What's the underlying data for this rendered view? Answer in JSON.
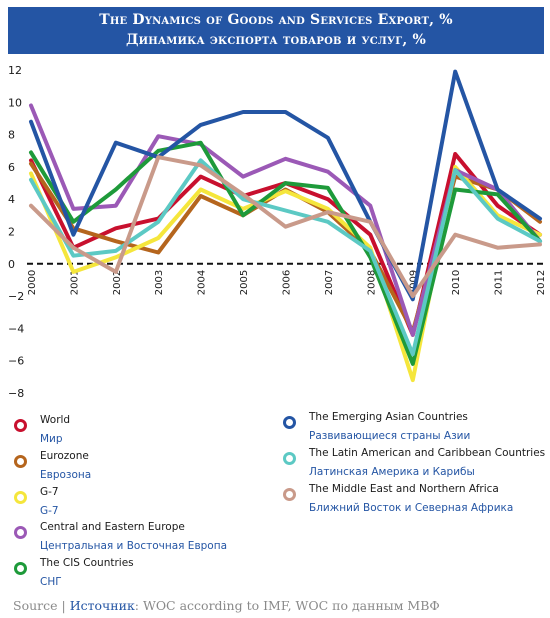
{
  "title": {
    "en": "The Dynamics of Goods and Services Export, %",
    "ru": "Динамика экспорта товаров и услуг, %"
  },
  "source": {
    "label_en": "Source",
    "separator": " | ",
    "label_ru": "Источник",
    "text": ": WOC according to IMF, WOC по данным МВФ"
  },
  "chart_data": {
    "type": "line",
    "title": "The Dynamics of Goods and Services Export, %",
    "categories": [
      "2000",
      "2001",
      "2002",
      "2003",
      "2004",
      "2005",
      "2006",
      "2007",
      "2008",
      "2009",
      "2010",
      "2011",
      "2012"
    ],
    "ylim": [
      -8,
      12
    ],
    "yticks": [
      12,
      10,
      8,
      6,
      4,
      2,
      0,
      -2,
      -4,
      -6,
      -8
    ],
    "zero_line": "dashed",
    "grid": false,
    "legend": "bottom",
    "series": [
      {
        "name": "World",
        "name_ru": "Мир",
        "color": "#c8102e",
        "values": [
          6.4,
          1.0,
          2.2,
          2.8,
          5.4,
          4.2,
          5.0,
          4.0,
          1.8,
          -4.4,
          6.8,
          3.6,
          1.8
        ]
      },
      {
        "name": "Eurozone",
        "name_ru": "Еврозона",
        "color": "#b5651d",
        "values": [
          6.2,
          2.2,
          1.4,
          0.7,
          4.2,
          3.0,
          4.6,
          3.2,
          0.8,
          -4.2,
          5.4,
          4.6,
          2.6
        ]
      },
      {
        "name": "G-7",
        "name_ru": "G-7",
        "color": "#f5e63c",
        "values": [
          5.6,
          -0.5,
          0.4,
          1.6,
          4.6,
          3.4,
          4.5,
          3.4,
          1.0,
          -7.2,
          6.0,
          3.0,
          1.8
        ]
      },
      {
        "name": "Central and Eastern Europe",
        "name_ru": "Центральная и Восточная Европа",
        "color": "#9b59b6",
        "values": [
          9.8,
          3.4,
          3.6,
          7.9,
          7.4,
          5.4,
          6.5,
          5.7,
          3.6,
          -4.4,
          5.8,
          4.6,
          1.4
        ]
      },
      {
        "name": "The CIS Countries",
        "name_ru": "СНГ",
        "color": "#1e9a3a",
        "values": [
          6.9,
          2.6,
          4.6,
          7.0,
          7.5,
          3.0,
          5.0,
          4.7,
          0.4,
          -6.2,
          4.6,
          4.3,
          1.4
        ]
      },
      {
        "name": "The Emerging Asian Countries",
        "name_ru": "Развивающиеся страны Азии",
        "color": "#2455a4",
        "values": [
          8.8,
          1.8,
          7.5,
          6.6,
          8.6,
          9.4,
          9.4,
          7.8,
          2.6,
          -2.2,
          11.9,
          4.6,
          2.8
        ]
      },
      {
        "name": "The Latin American and Caribbean Countries",
        "name_ru": "Латинская Америка и Карибы",
        "color": "#5cc9c4",
        "values": [
          5.2,
          0.5,
          0.8,
          2.6,
          6.4,
          4.0,
          3.3,
          2.6,
          0.8,
          -5.6,
          5.8,
          2.8,
          1.4
        ]
      },
      {
        "name": "The Middle East and Northern Africa",
        "name_ru": "Ближний Восток  и Северная Африка",
        "color": "#c99a8a",
        "values": [
          3.6,
          1.0,
          -0.5,
          6.6,
          6.1,
          4.3,
          2.3,
          3.2,
          2.6,
          -2.0,
          1.8,
          1.0,
          1.2
        ]
      }
    ]
  }
}
